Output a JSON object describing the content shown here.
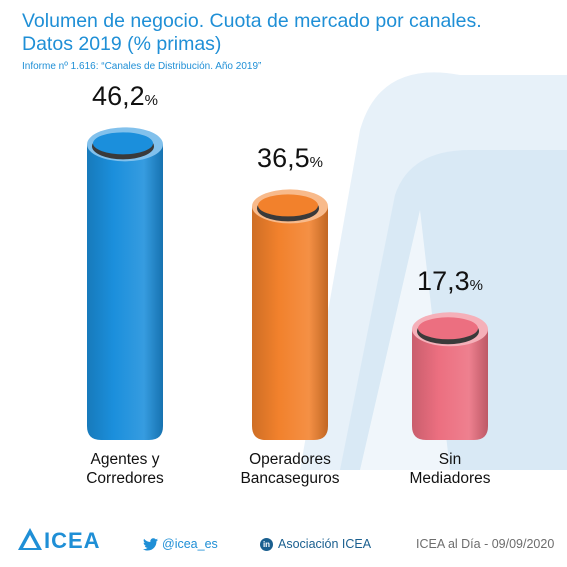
{
  "header": {
    "title_line1": "Volumen de negocio. Cuota de mercado por canales.",
    "title_line2": "Datos 2019 (% primas)",
    "subtitle": "Informe nº 1.616: “Canales de Distribución. Año 2019”"
  },
  "chart_data": {
    "type": "bar",
    "categories": [
      "Agentes y Corredores",
      "Operadores Bancaseguros",
      "Sin Mediadores"
    ],
    "category_lines": [
      [
        "Agentes y",
        "Corredores"
      ],
      [
        "Operadores",
        "Bancaseguros"
      ],
      [
        "Sin",
        "Mediadores"
      ]
    ],
    "values": [
      46.2,
      36.5,
      17.3
    ],
    "value_labels": [
      "46,2",
      "36,5",
      "17,3"
    ],
    "unit": "%",
    "ylim": [
      0,
      50
    ],
    "colors": [
      "#1b8fdc",
      "#f2812c",
      "#ec6f80"
    ]
  },
  "footer": {
    "logo_text": "ICEA",
    "logo_icon": "icea-logo-icon",
    "twitter": "@icea_es",
    "twitter_icon": "twitter-bird-icon",
    "linkedin": "Asociación ICEA",
    "linkedin_icon": "linkedin-icon",
    "linkedin_badge": "in",
    "date": "ICEA al Día - 09/09/2020"
  }
}
